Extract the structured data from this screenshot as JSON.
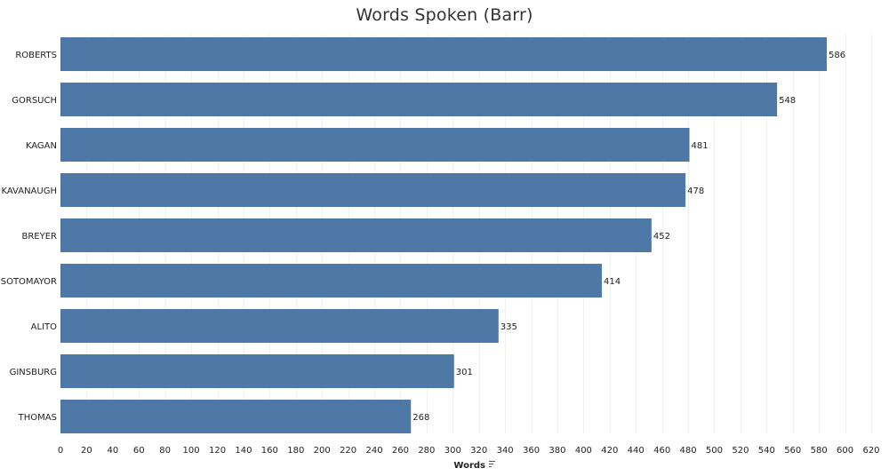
{
  "chart_data": {
    "type": "bar",
    "orientation": "horizontal",
    "title": "Words Spoken (Barr)",
    "xlabel": "Words",
    "ylabel": "",
    "categories": [
      "ROBERTS",
      "GORSUCH",
      "KAGAN",
      "KAVANAUGH",
      "BREYER",
      "SOTOMAYOR",
      "ALITO",
      "GINSBURG",
      "THOMAS"
    ],
    "values": [
      586,
      548,
      481,
      478,
      452,
      414,
      335,
      301,
      268
    ],
    "xlim": [
      0,
      620
    ],
    "xticks": [
      0,
      20,
      40,
      60,
      80,
      100,
      120,
      140,
      160,
      180,
      200,
      220,
      240,
      260,
      280,
      300,
      320,
      340,
      360,
      380,
      400,
      420,
      440,
      460,
      480,
      500,
      520,
      540,
      560,
      580,
      600,
      620
    ],
    "bar_color": "#4e79a7",
    "sort": "descending",
    "sort_icon": "sort-descending-icon",
    "grid": "vertical",
    "data_labels": true
  }
}
